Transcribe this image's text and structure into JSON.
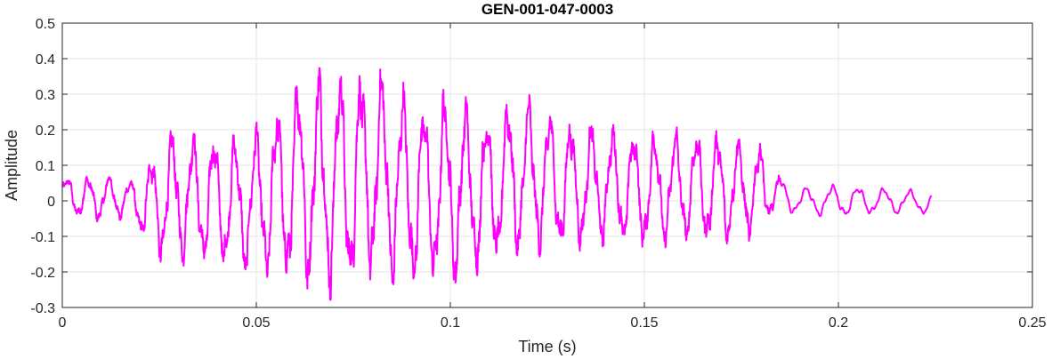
{
  "chart_data": {
    "type": "line",
    "title": "GEN-001-047-0003",
    "xlabel": "Time (s)",
    "ylabel": "Amplitude",
    "xlim": [
      0,
      0.25
    ],
    "ylim": [
      -0.3,
      0.5
    ],
    "xticks": [
      0,
      0.05,
      0.1,
      0.15,
      0.2,
      0.25
    ],
    "xtick_labels": [
      "0",
      "0.05",
      "0.1",
      "0.15",
      "0.2",
      "0.25"
    ],
    "yticks": [
      -0.3,
      -0.2,
      -0.1,
      0,
      0.1,
      0.2,
      0.3,
      0.4,
      0.5
    ],
    "ytick_labels": [
      "-0.3",
      "-0.2",
      "-0.1",
      "0",
      "0.1",
      "0.2",
      "0.3",
      "0.4",
      "0.5"
    ],
    "grid": true,
    "colors": {
      "line": "#ff00ff",
      "axis": "#262626",
      "grid": "#e6e6e6"
    },
    "series": [
      {
        "name": "",
        "x_start": 0,
        "x_end": 0.224,
        "envelope": {
          "t": [
            0,
            0.005,
            0.01,
            0.018,
            0.022,
            0.026,
            0.03,
            0.04,
            0.045,
            0.05,
            0.055,
            0.06,
            0.065,
            0.07,
            0.075,
            0.08,
            0.085,
            0.09,
            0.095,
            0.1,
            0.105,
            0.11,
            0.115,
            0.12,
            0.13,
            0.14,
            0.15,
            0.16,
            0.17,
            0.175,
            0.18,
            0.183,
            0.19,
            0.2,
            0.21,
            0.224
          ],
          "max": [
            0.07,
            0.07,
            0.08,
            0.06,
            0.12,
            0.2,
            0.21,
            0.2,
            0.19,
            0.22,
            0.28,
            0.36,
            0.38,
            0.4,
            0.38,
            0.41,
            0.35,
            0.32,
            0.28,
            0.34,
            0.28,
            0.26,
            0.3,
            0.3,
            0.24,
            0.22,
            0.2,
            0.21,
            0.2,
            0.18,
            0.17,
            0.09,
            0.04,
            0.05,
            0.04,
            0.03
          ],
          "min": [
            -0.02,
            -0.06,
            -0.06,
            -0.05,
            -0.15,
            -0.19,
            -0.18,
            -0.2,
            -0.21,
            -0.22,
            -0.25,
            -0.25,
            -0.27,
            -0.28,
            -0.27,
            -0.24,
            -0.26,
            -0.26,
            -0.24,
            -0.26,
            -0.22,
            -0.2,
            -0.18,
            -0.16,
            -0.15,
            -0.13,
            -0.14,
            -0.13,
            -0.13,
            -0.12,
            -0.11,
            -0.04,
            -0.04,
            -0.05,
            -0.04,
            -0.04
          ]
        }
      }
    ]
  }
}
